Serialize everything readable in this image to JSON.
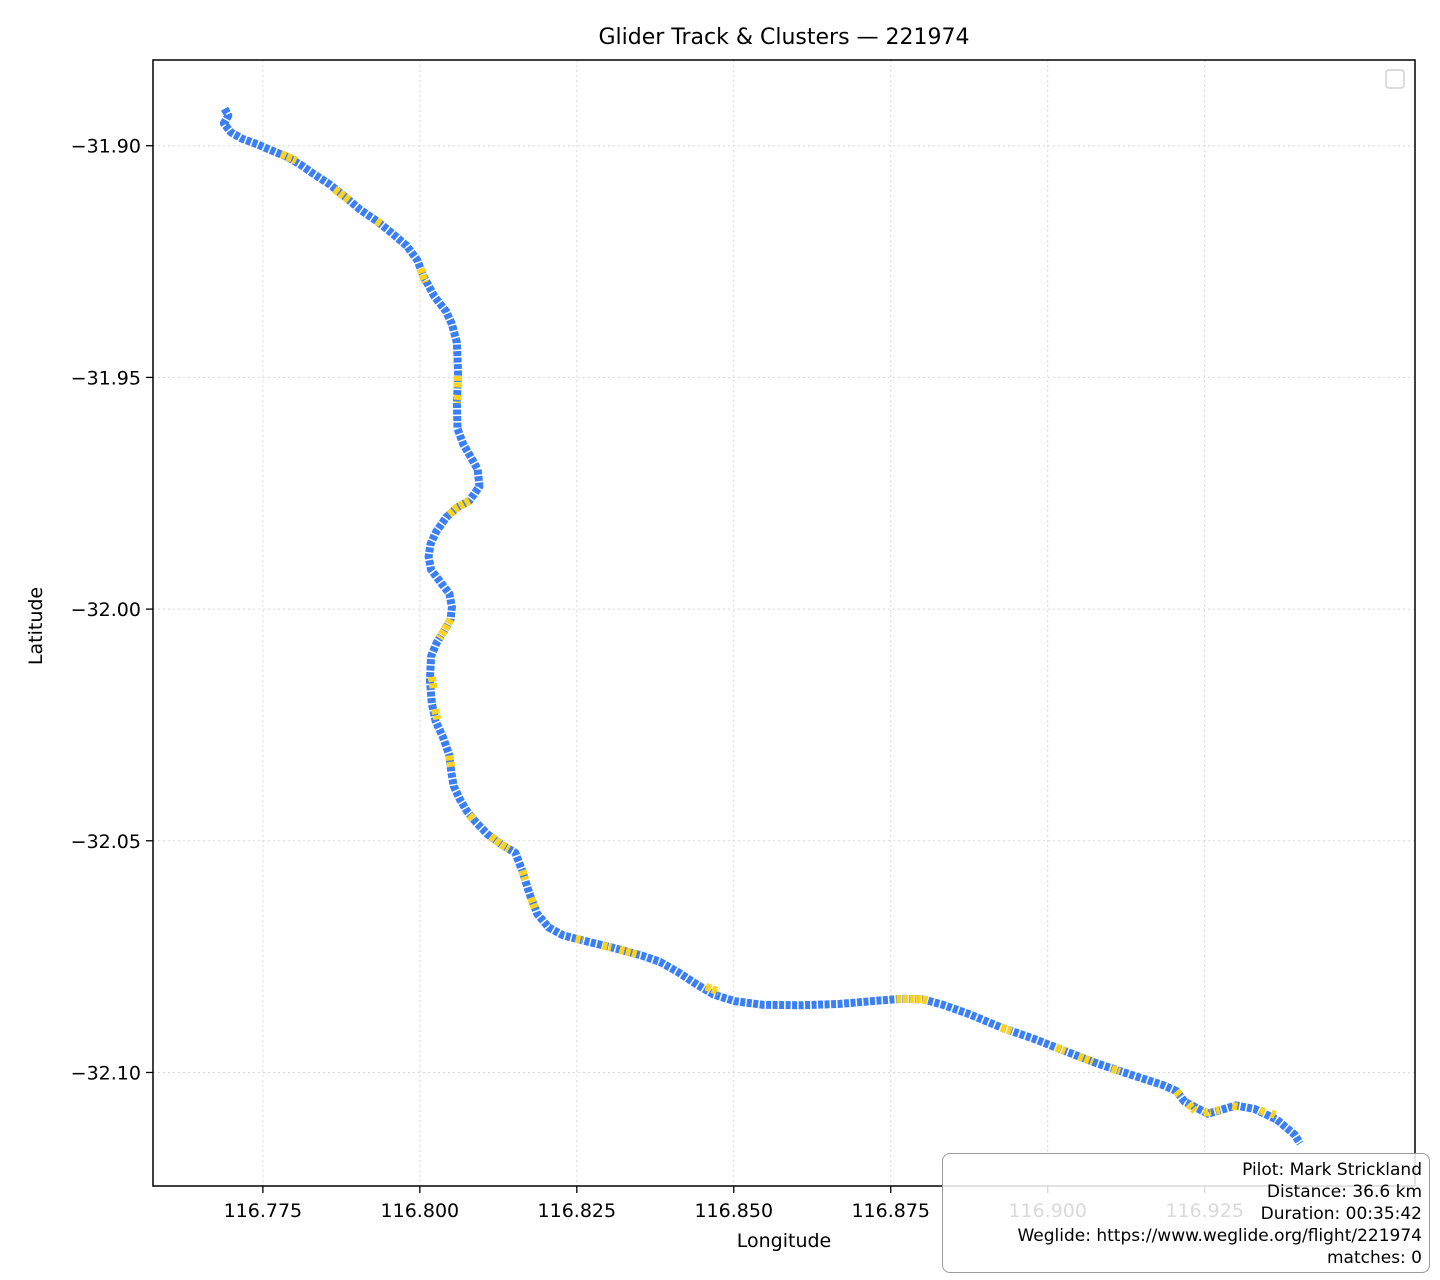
{
  "chart_data": {
    "type": "line",
    "title": "Glider Track & Clusters — 221974",
    "xlabel": "Longitude",
    "ylabel": "Latitude",
    "xlim": [
      116.7575,
      116.9585
    ],
    "ylim": [
      -32.1245,
      -31.8815
    ],
    "xticks": [
      116.775,
      116.8,
      116.825,
      116.85,
      116.875,
      116.9,
      116.925
    ],
    "xtick_labels": [
      "116.775",
      "116.800",
      "116.825",
      "116.850",
      "116.875",
      "116.900",
      "116.925"
    ],
    "yticks": [
      -31.9,
      -31.95,
      -32.0,
      -32.05,
      -32.1
    ],
    "ytick_labels": [
      "−31.90",
      "−31.95",
      "−32.00",
      "−32.05",
      "−32.10"
    ],
    "grid": true,
    "legend": "top-right, empty",
    "track_color": "#3a7ff5",
    "cluster_color": "#ffd21f",
    "track": {
      "lon": [
        116.7689,
        116.7695,
        116.7688,
        116.7699,
        116.7717,
        116.7741,
        116.7765,
        116.779,
        116.7811,
        116.7831,
        116.7856,
        116.7878,
        116.7905,
        116.7931,
        116.7954,
        116.7979,
        116.7996,
        116.8006,
        116.8023,
        116.8042,
        116.8051,
        116.8059,
        116.8061,
        116.8059,
        116.806,
        116.8069,
        116.8082,
        116.8092,
        116.8095,
        116.8079,
        116.806,
        116.8042,
        116.8026,
        116.8017,
        116.8014,
        116.8018,
        116.8034,
        116.8047,
        116.8051,
        116.8049,
        116.8039,
        116.8027,
        116.8018,
        116.8016,
        116.8019,
        116.8025,
        116.8037,
        116.8047,
        116.805,
        116.8054,
        116.8064,
        116.8075,
        116.809,
        116.8108,
        116.8131,
        116.8152,
        116.8163,
        116.8174,
        116.8187,
        116.8205,
        116.8228,
        116.8265,
        116.8308,
        116.8354,
        116.8382,
        116.8412,
        116.8442,
        116.8468,
        116.8501,
        116.8546,
        116.8607,
        116.8669,
        116.8721,
        116.8768,
        116.8801,
        116.8831,
        116.8875,
        116.8926,
        116.8977,
        116.9028,
        116.908,
        116.9133,
        116.9183,
        116.9205,
        116.9218,
        116.9255,
        116.9273,
        116.93,
        116.933,
        116.9365,
        116.9393,
        116.9402
      ],
      "lat": [
        -31.892,
        -31.8935,
        -31.8952,
        -31.8971,
        -31.8985,
        -31.8997,
        -31.9011,
        -31.9025,
        -31.9042,
        -31.9061,
        -31.9083,
        -31.9107,
        -31.9138,
        -31.9162,
        -31.9187,
        -31.9216,
        -31.9247,
        -31.9282,
        -31.9325,
        -31.9358,
        -31.9385,
        -31.9425,
        -31.949,
        -31.9555,
        -31.9611,
        -31.9644,
        -31.9674,
        -31.9698,
        -31.9735,
        -31.9766,
        -31.978,
        -31.9802,
        -31.9833,
        -31.986,
        -31.9887,
        -31.9915,
        -31.9944,
        -31.9967,
        -31.9995,
        -32.0022,
        -32.0046,
        -32.0072,
        -32.0102,
        -32.0153,
        -32.0203,
        -32.0241,
        -32.0277,
        -32.0316,
        -32.0351,
        -32.0382,
        -32.0411,
        -32.0436,
        -32.0461,
        -32.0486,
        -32.0509,
        -32.0526,
        -32.0564,
        -32.0612,
        -32.0658,
        -32.0687,
        -32.0704,
        -32.0717,
        -32.0731,
        -32.0748,
        -32.0761,
        -32.0784,
        -32.0811,
        -32.0832,
        -32.0846,
        -32.0854,
        -32.0855,
        -32.0852,
        -32.0846,
        -32.0841,
        -32.0842,
        -32.0853,
        -32.0874,
        -32.0903,
        -32.0927,
        -32.0954,
        -32.0981,
        -32.1005,
        -32.1027,
        -32.104,
        -32.1063,
        -32.1089,
        -32.1082,
        -32.1071,
        -32.1079,
        -32.1102,
        -32.1134,
        -32.1153
      ]
    },
    "clusters": [
      {
        "lon": [
          116.7779,
          116.7803
        ],
        "lat": [
          -31.9018,
          -31.9032
        ]
      },
      {
        "lon": [
          116.7864,
          116.7888
        ],
        "lat": [
          -31.9094,
          -31.9118
        ]
      },
      {
        "lon": [
          116.7931,
          116.7939
        ],
        "lat": [
          -31.9162,
          -31.9169
        ]
      },
      {
        "lon": [
          116.8001,
          116.8008
        ],
        "lat": [
          -31.9265,
          -31.9295
        ]
      },
      {
        "lon": [
          116.8061,
          116.806
        ],
        "lat": [
          -31.9497,
          -31.9522
        ]
      },
      {
        "lon": [
          116.8061,
          116.8059
        ],
        "lat": [
          -31.9538,
          -31.9555
        ]
      },
      {
        "lon": [
          116.8079,
          116.806,
          116.8045
        ],
        "lat": [
          -31.9766,
          -31.978,
          -31.9798
        ]
      },
      {
        "lon": [
          116.8049,
          116.8039,
          116.8031
        ],
        "lat": [
          -32.0022,
          -32.0046,
          -32.0063
        ]
      },
      {
        "lon": [
          116.8019,
          116.8022
        ],
        "lat": [
          -32.0146,
          -32.0173
        ]
      },
      {
        "lon": [
          116.8024,
          116.8028
        ],
        "lat": [
          -32.0216,
          -32.0238
        ]
      },
      {
        "lon": [
          116.8047,
          116.805
        ],
        "lat": [
          -32.0316,
          -32.0341
        ]
      },
      {
        "lon": [
          116.8079,
          116.8085
        ],
        "lat": [
          -32.0445,
          -32.0453
        ]
      },
      {
        "lon": [
          116.8113,
          116.8131,
          116.8142
        ],
        "lat": [
          -32.0491,
          -32.0509,
          -32.0518
        ]
      },
      {
        "lon": [
          116.8163,
          116.8168
        ],
        "lat": [
          -32.0564,
          -32.0584
        ]
      },
      {
        "lon": [
          116.8177,
          116.8183
        ],
        "lat": [
          -32.0623,
          -32.0645
        ]
      },
      {
        "lon": [
          116.8248,
          116.8259
        ],
        "lat": [
          -32.0711,
          -32.0715
        ]
      },
      {
        "lon": [
          116.8291,
          116.8305
        ],
        "lat": [
          -32.0726,
          -32.073
        ]
      },
      {
        "lon": [
          116.8318,
          116.8345
        ],
        "lat": [
          -32.0735,
          -32.0745
        ]
      },
      {
        "lon": [
          116.8456,
          116.8476
        ],
        "lat": [
          -32.0815,
          -32.0826
        ]
      },
      {
        "lon": [
          116.8759,
          116.8801,
          116.8809
        ],
        "lat": [
          -32.0841,
          -32.0842,
          -32.0845
        ]
      },
      {
        "lon": [
          116.8926,
          116.8942
        ],
        "lat": [
          -32.0903,
          -32.0911
        ]
      },
      {
        "lon": [
          116.9013,
          116.9028
        ],
        "lat": [
          -32.0946,
          -32.0954
        ]
      },
      {
        "lon": [
          116.9049,
          116.9072
        ],
        "lat": [
          -32.0965,
          -32.0977
        ]
      },
      {
        "lon": [
          116.9102,
          116.9115
        ],
        "lat": [
          -32.0992,
          -32.0998
        ]
      },
      {
        "lon": [
          116.9205,
          116.9212
        ],
        "lat": [
          -32.104,
          -32.1051
        ]
      },
      {
        "lon": [
          116.9224,
          116.9235
        ],
        "lat": [
          -32.1068,
          -32.1083
        ]
      },
      {
        "lon": [
          116.9248,
          116.926
        ],
        "lat": [
          -32.1087,
          -32.1085
        ]
      },
      {
        "lon": [
          116.9268,
          116.9274
        ],
        "lat": [
          -32.1083,
          -32.1081
        ]
      },
      {
        "lon": [
          116.9294,
          116.9305
        ],
        "lat": [
          -32.1072,
          -32.1075
        ]
      },
      {
        "lon": [
          116.9338,
          116.9346
        ],
        "lat": [
          -32.1082,
          -32.1085
        ]
      },
      {
        "lon": [
          116.9356,
          116.9362
        ],
        "lat": [
          -32.1088,
          -32.1092
        ]
      }
    ]
  },
  "info_box": {
    "lines": [
      "Pilot: Mark Strickland",
      "Distance: 36.6 km",
      "Duration: 00:35:42",
      "Weglide: https://www.weglide.org/flight/221974",
      "matches: 0"
    ]
  }
}
